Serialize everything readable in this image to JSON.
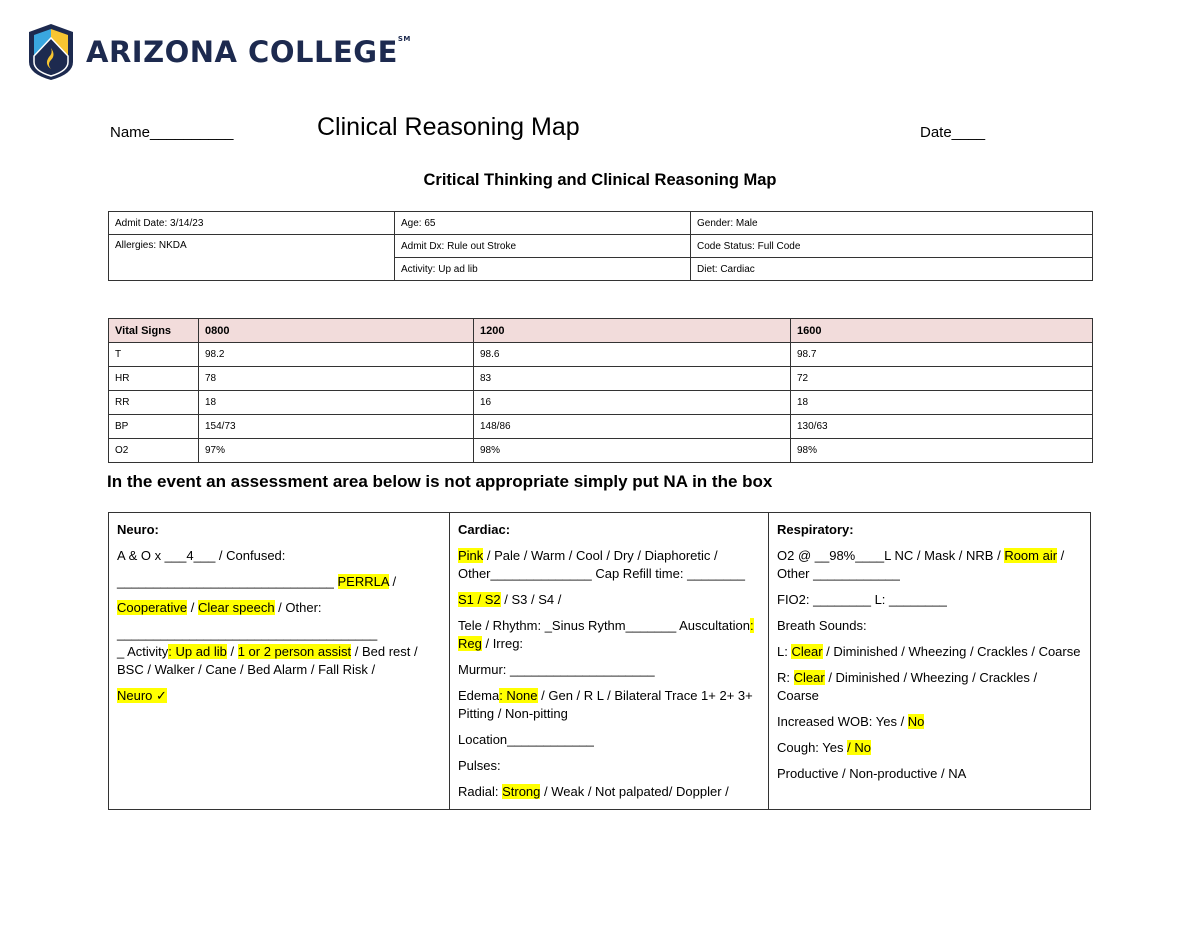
{
  "logo": {
    "text": "ARIZONA COLLEGE",
    "mark": "SM",
    "colors": {
      "navy": "#1d2a4f",
      "blue": "#3aa7e0",
      "gold": "#f7c531"
    }
  },
  "header": {
    "name_label": "Name__________",
    "title": "Clinical Reasoning Map",
    "date_label": "Date____"
  },
  "subtitle": "Critical Thinking and Clinical Reasoning Map",
  "info": {
    "admit_date": "Admit Date: 3/14/23",
    "age": "Age: 65",
    "gender": "Gender: Male",
    "allergies": "Allergies: NKDA",
    "admit_dx": "Admit Dx: Rule out Stroke",
    "code_status": "Code Status: Full Code",
    "activity": "Activity: Up ad lib",
    "diet": "Diet: Cardiac"
  },
  "vitals": {
    "headers": [
      "Vital Signs",
      "0800",
      "1200",
      "1600"
    ],
    "rows": [
      [
        "T",
        "98.2",
        "98.6",
        "98.7"
      ],
      [
        "HR",
        "78",
        "83",
        "72"
      ],
      [
        "RR",
        "18",
        "16",
        "18"
      ],
      [
        "BP",
        "154/73",
        "148/86",
        "130/63"
      ],
      [
        "O2",
        "97%",
        "98%",
        "98%"
      ]
    ],
    "header_color": "#f2dcdb"
  },
  "note": "In the event an assessment area below is not appropriate simply put NA in the box",
  "highlight_color": "#ffff00",
  "assessment": [
    {
      "title": "Neuro:",
      "lines": [
        [
          {
            "t": "A & O x ___4___ / Confused:"
          }
        ],
        [
          {
            "t": "______________________________ "
          },
          {
            "t": "PERRLA",
            "hl": true
          },
          {
            "t": " /"
          }
        ],
        [
          {
            "t": "Cooperative",
            "hl": true
          },
          {
            "t": " / "
          },
          {
            "t": "Clear speech",
            "hl": true
          },
          {
            "t": " / Other:"
          }
        ],
        [
          {
            "t": "____________________________________",
            "tight": true
          }
        ],
        [
          {
            "t": "_ Activity"
          },
          {
            "t": ": Up ad lib",
            "hl": true
          },
          {
            "t": " / "
          },
          {
            "t": "1 or 2 person assist",
            "hl": true
          },
          {
            "t": " / Bed rest / BSC / Walker / Cane / Bed Alarm / Fall Risk /"
          }
        ],
        [
          {
            "t": "Neuro ✓",
            "hl": true
          }
        ]
      ]
    },
    {
      "title": "Cardiac:",
      "lines": [
        [
          {
            "t": "Pink",
            "hl": true
          },
          {
            "t": " / Pale / Warm / Cool / Dry / Diaphoretic / Other______________ Cap Refill time: ________"
          }
        ],
        [
          {
            "t": "S1 / S2",
            "hl": true
          },
          {
            "t": " / S3 / S4 /"
          }
        ],
        [
          {
            "t": "Tele / Rhythm: _Sinus Rythm_______ Auscultation"
          },
          {
            "t": ": Reg",
            "hl": true
          },
          {
            "t": " / Irreg:"
          }
        ],
        [
          {
            "t": "Murmur: ____________________"
          }
        ],
        [
          {
            "t": "Edema"
          },
          {
            "t": ": None",
            "hl": true
          },
          {
            "t": " / Gen / R L / Bilateral Trace 1+ 2+ 3+ Pitting / Non-pitting"
          }
        ],
        [
          {
            "t": "Location____________"
          }
        ],
        [
          {
            "t": "Pulses:"
          }
        ],
        [
          {
            "t": "Radial: "
          },
          {
            "t": "Strong",
            "hl": true
          },
          {
            "t": " / Weak / Not palpated/ Doppler /"
          }
        ]
      ]
    },
    {
      "title": "Respiratory:",
      "lines": [
        [
          {
            "t": "O2 @ __98%____L NC / Mask / NRB / "
          },
          {
            "t": "Room air",
            "hl": true
          },
          {
            "t": "  / Other ____________"
          }
        ],
        [
          {
            "t": "FIO2: ________ L: ________"
          }
        ],
        [
          {
            "t": "Breath Sounds:"
          }
        ],
        [
          {
            "t": "L: "
          },
          {
            "t": "Clear",
            "hl": true
          },
          {
            "t": " / Diminished / Wheezing / Crackles / Coarse"
          }
        ],
        [
          {
            "t": "R: "
          },
          {
            "t": "Clear",
            "hl": true
          },
          {
            "t": " / Diminished / Wheezing / Crackles / Coarse"
          }
        ],
        [
          {
            "t": "Increased WOB:  Yes / "
          },
          {
            "t": "No",
            "hl": true
          }
        ],
        [
          {
            "t": "Cough: Yes "
          },
          {
            "t": "/ No",
            "hl": true
          }
        ],
        [
          {
            "t": "Productive / Non-productive / NA"
          }
        ]
      ]
    }
  ]
}
